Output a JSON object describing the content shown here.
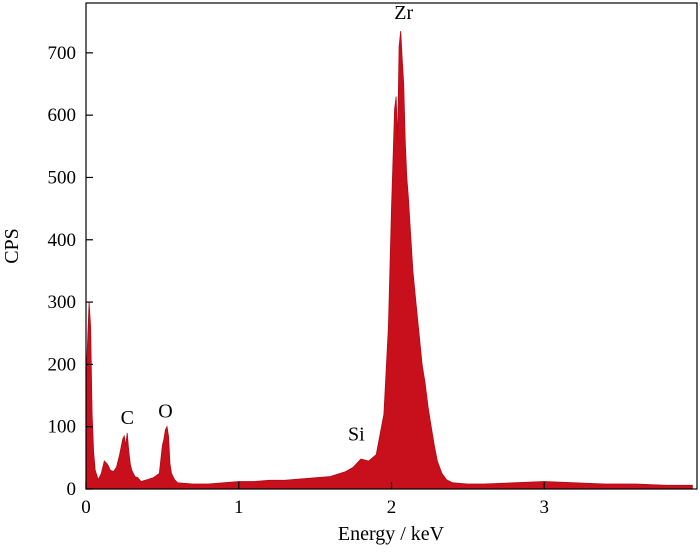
{
  "chart_data": {
    "type": "area",
    "title": "",
    "xlabel": "Energy / keV",
    "ylabel": "CPS",
    "xlim": [
      0,
      4.0
    ],
    "ylim": [
      0,
      780
    ],
    "x_ticks": [
      0,
      1,
      2,
      3
    ],
    "y_ticks": [
      0,
      100,
      200,
      300,
      400,
      500,
      600,
      700
    ],
    "grid": false,
    "legend": "none",
    "colors": {
      "fill": "#c8101c",
      "stroke": "#b00b17",
      "axis": "#000000"
    },
    "annotations": [
      {
        "text": "Zr",
        "x": 2.08,
        "y": 745
      },
      {
        "text": "C",
        "x": 0.27,
        "y": 95
      },
      {
        "text": "O",
        "x": 0.52,
        "y": 105
      },
      {
        "text": "Si",
        "x": 1.77,
        "y": 68
      }
    ],
    "series": [
      {
        "x": [
          0.0,
          0.02,
          0.03,
          0.04,
          0.05,
          0.06,
          0.08,
          0.1,
          0.12,
          0.14,
          0.16,
          0.18,
          0.2,
          0.22,
          0.24,
          0.25,
          0.26,
          0.27,
          0.28,
          0.29,
          0.3,
          0.32,
          0.34,
          0.36,
          0.4,
          0.44,
          0.48,
          0.5,
          0.51,
          0.52,
          0.53,
          0.54,
          0.55,
          0.56,
          0.58,
          0.6,
          0.7,
          0.8,
          0.9,
          1.0,
          1.1,
          1.2,
          1.3,
          1.4,
          1.5,
          1.6,
          1.7,
          1.75,
          1.8,
          1.85,
          1.9,
          1.95,
          1.98,
          2.0,
          2.02,
          2.03,
          2.04,
          2.05,
          2.06,
          2.07,
          2.08,
          2.09,
          2.1,
          2.11,
          2.12,
          2.14,
          2.16,
          2.18,
          2.2,
          2.22,
          2.24,
          2.26,
          2.28,
          2.3,
          2.33,
          2.36,
          2.4,
          2.5,
          2.6,
          2.8,
          3.0,
          3.2,
          3.4,
          3.6,
          3.8,
          3.97
        ],
        "values": [
          170,
          300,
          260,
          120,
          60,
          30,
          15,
          25,
          45,
          40,
          30,
          28,
          35,
          55,
          80,
          85,
          70,
          90,
          60,
          40,
          30,
          20,
          18,
          12,
          15,
          18,
          25,
          70,
          80,
          95,
          100,
          85,
          40,
          25,
          15,
          10,
          8,
          8,
          10,
          12,
          12,
          14,
          14,
          16,
          18,
          20,
          28,
          35,
          48,
          45,
          55,
          120,
          260,
          450,
          610,
          630,
          560,
          710,
          735,
          690,
          650,
          560,
          500,
          470,
          430,
          350,
          300,
          250,
          200,
          170,
          130,
          100,
          70,
          45,
          25,
          15,
          10,
          8,
          8,
          10,
          12,
          10,
          8,
          8,
          6,
          6
        ]
      }
    ]
  }
}
